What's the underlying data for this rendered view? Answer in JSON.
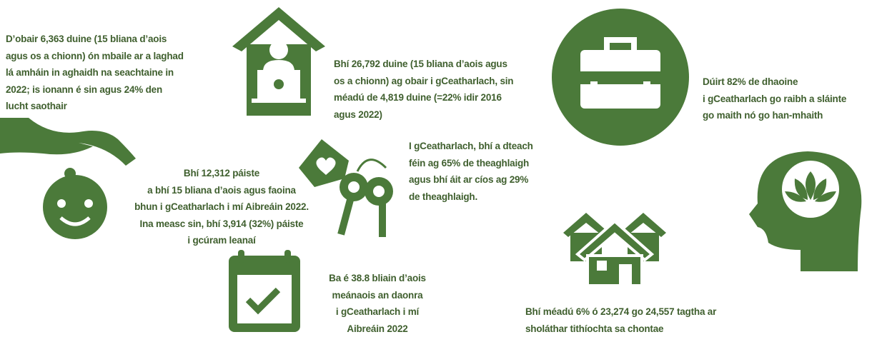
{
  "facts": [
    {
      "lines": [
        "D’obair 6,363 duine (15 bliana d’aois",
        "agus os a chionn) ón mbaile ar a laghad",
        "lá amháin in aghaidh na seachtaine in",
        "2022; is ionann é sin agus 24% den",
        "lucht saothair"
      ]
    },
    {
      "lines": [
        "Bhí 26,792 duine (15 bliana d’aois agus",
        "os a chionn) ag obair i gCeatharlach, sin",
        "méadú de 4,819 duine (=22% idir 2016",
        "agus 2022)"
      ]
    },
    {
      "lines": [
        "Dúirt 82% de dhaoine",
        "i gCeatharlach go raibh a sláinte",
        "go maith nó go han-mhaith"
      ]
    },
    {
      "lines": [
        "Bhí 12,312 páiste",
        "a bhí 15 bliana d’aois agus faoina",
        "bhun i gCeatharlach i mí Aibreáin 2022.",
        "Ina measc sin, bhí 3,914 (32%) páiste",
        "i gcúram leanaí"
      ]
    },
    {
      "lines": [
        "I gCeatharlach, bhí a dteach",
        "féin ag 65% de theaghlaigh",
        "agus bhí áit ar cíos ag 29%",
        "de theaghlaigh."
      ]
    },
    {
      "lines": [
        "Ba é 38.8 bliain d’aois",
        "meánaois an daonra",
        "i gCeatharlach i mí",
        "Aibreáin 2022"
      ]
    },
    {
      "lines": [
        "Bhí méadú 6% ó 23,274 go 24,557 tagtha ar",
        "sholáthar tithíochta sa chontae"
      ]
    }
  ]
}
